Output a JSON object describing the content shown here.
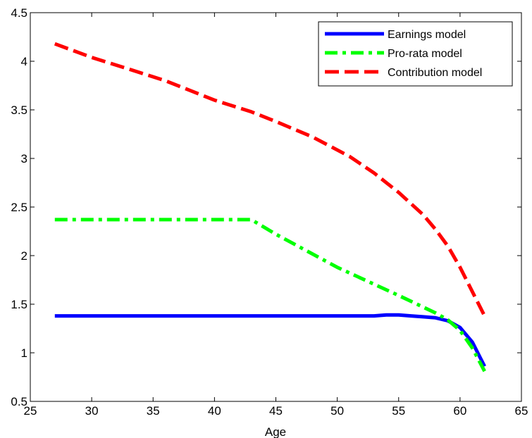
{
  "chart_data": {
    "type": "line",
    "title": "",
    "xlabel": "Age",
    "ylabel": "",
    "xlim": [
      25,
      65
    ],
    "ylim": [
      0.5,
      4.5
    ],
    "x_ticks": [
      25,
      30,
      35,
      40,
      45,
      50,
      55,
      60,
      65
    ],
    "y_ticks": [
      0.5,
      1,
      1.5,
      2,
      2.5,
      3,
      3.5,
      4,
      4.5
    ],
    "x_tick_labels": [
      "25",
      "30",
      "35",
      "40",
      "45",
      "50",
      "55",
      "60",
      "65"
    ],
    "y_tick_labels": [
      "0.5",
      "1",
      "1.5",
      "2",
      "2.5",
      "3",
      "3.5",
      "4",
      "4.5"
    ],
    "grid": false,
    "legend_position": "top-right",
    "series": [
      {
        "name": "Earnings model",
        "color": "#0000ff",
        "style": "solid",
        "x": [
          27,
          30,
          35,
          40,
          45,
          50,
          53,
          54,
          55,
          56,
          57,
          58,
          59,
          60,
          61,
          62
        ],
        "y": [
          1.38,
          1.38,
          1.38,
          1.38,
          1.38,
          1.38,
          1.38,
          1.39,
          1.39,
          1.38,
          1.37,
          1.36,
          1.33,
          1.26,
          1.11,
          0.86
        ]
      },
      {
        "name": "Pro-rata model",
        "color": "#00ff00",
        "style": "dashdot",
        "x": [
          27,
          30,
          35,
          40,
          43,
          45,
          50,
          55,
          58,
          59,
          60,
          61,
          62
        ],
        "y": [
          2.37,
          2.37,
          2.37,
          2.37,
          2.37,
          2.22,
          1.88,
          1.59,
          1.41,
          1.34,
          1.23,
          1.05,
          0.81
        ]
      },
      {
        "name": "Contribution model",
        "color": "#ff0000",
        "style": "dashed",
        "x": [
          27,
          30,
          33,
          36,
          40,
          43,
          45,
          48,
          51,
          53,
          55,
          57,
          58,
          59,
          60,
          61,
          62
        ],
        "y": [
          4.18,
          4.04,
          3.92,
          3.8,
          3.6,
          3.48,
          3.38,
          3.22,
          3.02,
          2.85,
          2.65,
          2.42,
          2.27,
          2.1,
          1.88,
          1.63,
          1.38
        ]
      }
    ]
  }
}
